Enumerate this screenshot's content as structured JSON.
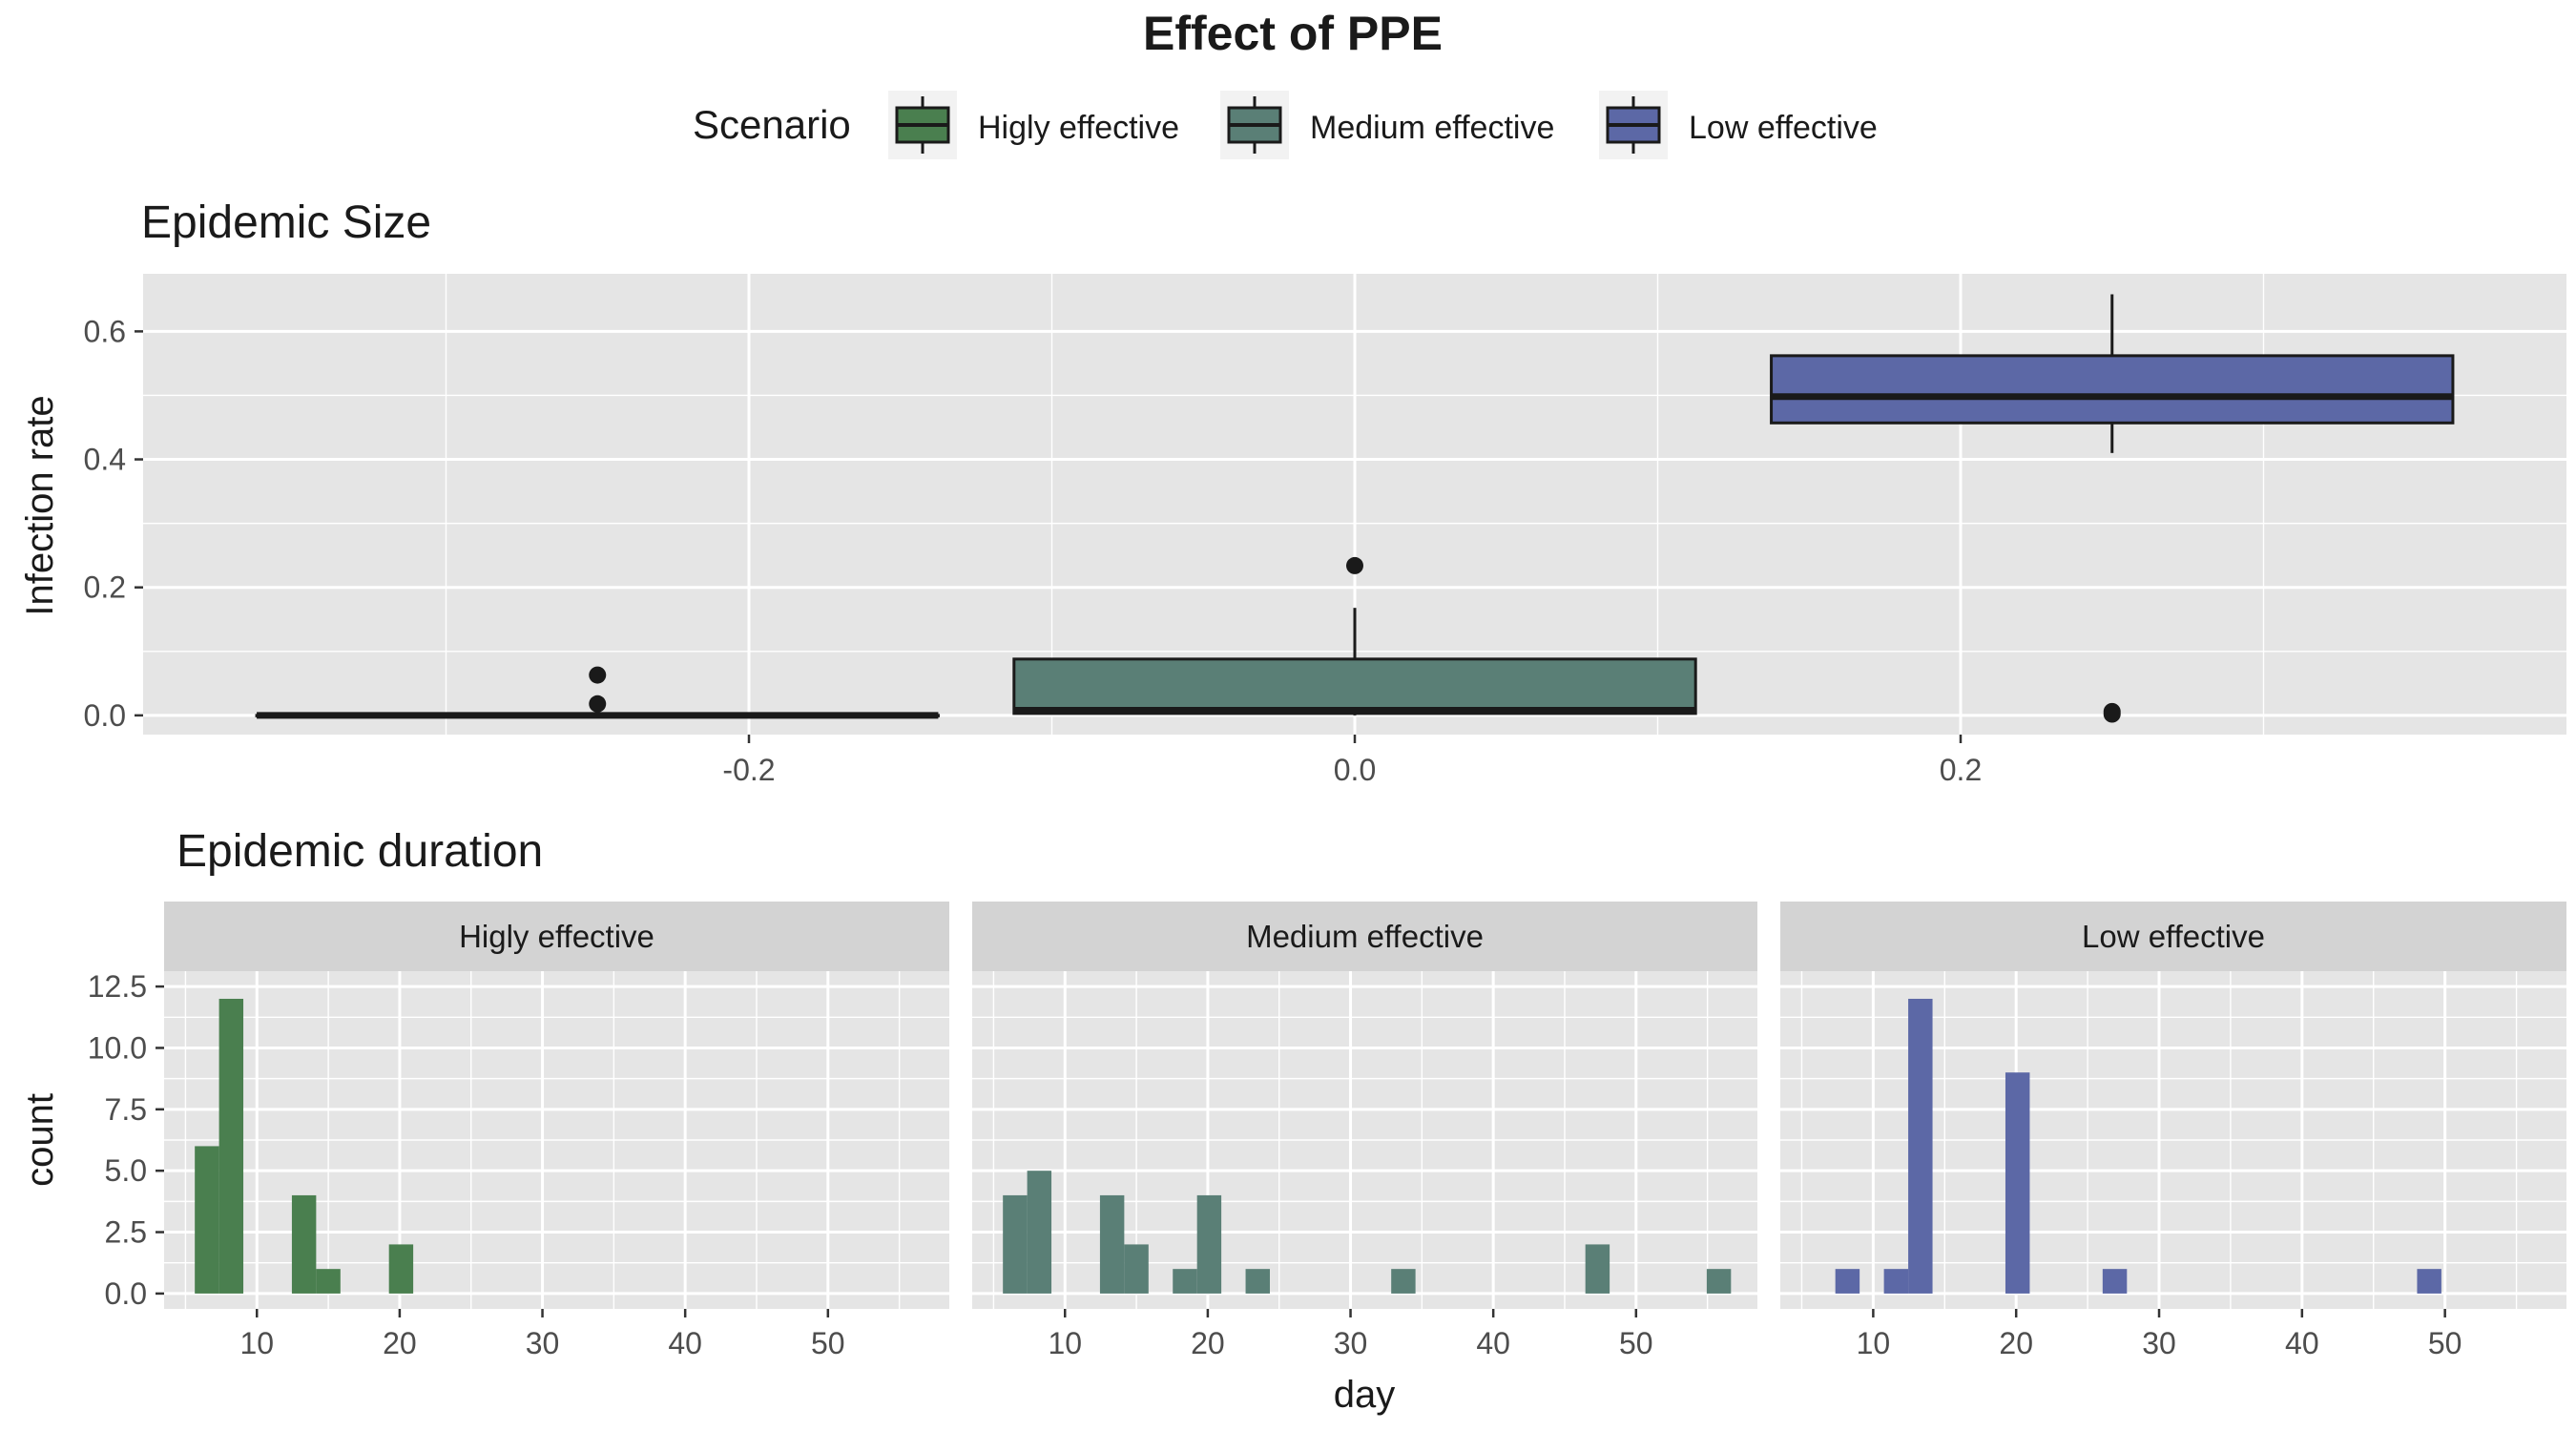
{
  "title": "Effect of PPE",
  "legend": {
    "title": "Scenario",
    "entries": [
      {
        "label": "Higly effective",
        "color": "#4a7f4f"
      },
      {
        "label": "Medium effective",
        "color": "#5a7f76"
      },
      {
        "label": "Low effective",
        "color": "#5c68a6"
      }
    ],
    "placement": "top"
  },
  "colors": {
    "panel_bg": "#e5e5e5",
    "grid": "#ffffff",
    "strip_bg": "#d3d3d3",
    "outline": "#1a1a1a",
    "text": "#1a1a1a",
    "tick_text": "#4d4d4d"
  },
  "chart_data": [
    {
      "type": "boxplot",
      "title": "Epidemic Size",
      "xlabel": "",
      "ylabel": "Infection rate",
      "xlim": [
        -0.4,
        0.4
      ],
      "ylim": [
        -0.03,
        0.69
      ],
      "x_ticks": [
        -0.2,
        0.0,
        0.2
      ],
      "x_tick_labels": [
        "-0.2",
        "0.0",
        "0.2"
      ],
      "y_ticks": [
        0.0,
        0.2,
        0.4,
        0.6
      ],
      "y_tick_labels": [
        "0.0",
        "0.2",
        "0.4",
        "0.6"
      ],
      "grid": true,
      "boxes": [
        {
          "series": "Higly effective",
          "x_center": -0.25,
          "x_width": 0.225,
          "whisker_low": 0.0,
          "q1": 0.0,
          "median": 0.0,
          "q3": 0.0,
          "whisker_high": 0.0,
          "outliers": [
            0.063,
            0.018
          ]
        },
        {
          "series": "Medium effective",
          "x_center": 0.0,
          "x_width": 0.225,
          "whisker_low": 0.0,
          "q1": 0.003,
          "median": 0.008,
          "q3": 0.088,
          "whisker_high": 0.168,
          "outliers": [
            0.234
          ]
        },
        {
          "series": "Low effective",
          "x_center": 0.25,
          "x_width": 0.225,
          "whisker_low": 0.41,
          "q1": 0.457,
          "median": 0.498,
          "q3": 0.562,
          "whisker_high": 0.658,
          "outliers": [
            0.002,
            0.006
          ]
        }
      ]
    },
    {
      "type": "bar",
      "subtype": "histogram",
      "title": "Epidemic duration",
      "xlabel": "day",
      "ylabel": "count",
      "xlim": [
        3.5,
        58.5
      ],
      "ylim": [
        -0.625,
        13.125
      ],
      "x_ticks": [
        10,
        20,
        30,
        40,
        50
      ],
      "x_tick_labels": [
        "10",
        "20",
        "30",
        "40",
        "50"
      ],
      "y_ticks": [
        0,
        2.5,
        5,
        7.5,
        10,
        12.5
      ],
      "y_tick_labels": [
        "0.0",
        "2.5",
        "5.0",
        "7.5",
        "10.0",
        "12.5"
      ],
      "bin_width": 1.7,
      "grid": true,
      "facets": [
        {
          "label": "Higly effective",
          "bins": [
            {
              "x": 6.5,
              "count": 6
            },
            {
              "x": 8.2,
              "count": 12
            },
            {
              "x": 13.3,
              "count": 4
            },
            {
              "x": 15.0,
              "count": 1
            },
            {
              "x": 20.1,
              "count": 2
            }
          ]
        },
        {
          "label": "Medium effective",
          "bins": [
            {
              "x": 6.5,
              "count": 4
            },
            {
              "x": 8.2,
              "count": 5
            },
            {
              "x": 13.3,
              "count": 4
            },
            {
              "x": 15.0,
              "count": 2
            },
            {
              "x": 18.4,
              "count": 1
            },
            {
              "x": 20.1,
              "count": 4
            },
            {
              "x": 23.5,
              "count": 1
            },
            {
              "x": 33.7,
              "count": 1
            },
            {
              "x": 47.3,
              "count": 2
            },
            {
              "x": 55.8,
              "count": 1
            }
          ]
        },
        {
          "label": "Low effective",
          "bins": [
            {
              "x": 8.2,
              "count": 1
            },
            {
              "x": 11.6,
              "count": 1
            },
            {
              "x": 13.3,
              "count": 12
            },
            {
              "x": 20.1,
              "count": 9
            },
            {
              "x": 26.9,
              "count": 1
            },
            {
              "x": 48.9,
              "count": 1
            }
          ]
        }
      ]
    }
  ]
}
